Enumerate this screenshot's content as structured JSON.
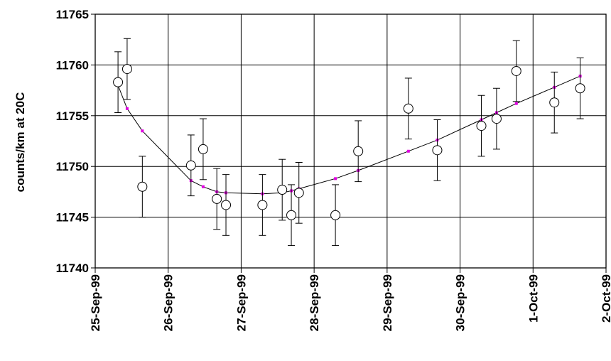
{
  "chart_data": {
    "type": "scatter",
    "title": "",
    "xlabel": "",
    "ylabel": "counts/km at 20C",
    "ylim": [
      11740,
      11765
    ],
    "y_ticks": [
      11740,
      11745,
      11750,
      11755,
      11760,
      11765
    ],
    "xlim": [
      "25-Sep-99",
      "2-Oct-99"
    ],
    "x_tick_labels": [
      "25-Sep-99",
      "26-Sep-99",
      "27-Sep-99",
      "28-Sep-99",
      "29-Sep-99",
      "30-Sep-99",
      "1-Oct-99",
      "2-Oct-99"
    ],
    "grid": true,
    "legend": "none",
    "colors": {
      "fit": "#000000",
      "fit_marker": "#e000e0",
      "points": "#000000",
      "background": "#ffffff"
    },
    "series": [
      {
        "marker": "open-circle",
        "error_bar": 3,
        "points": [
          {
            "x": "25-Sep-99 07:30",
            "y": 11758.3
          },
          {
            "x": "25-Sep-99 10:30",
            "y": 11759.6
          },
          {
            "x": "25-Sep-99 15:30",
            "y": 11748.0
          },
          {
            "x": "26-Sep-99 07:30",
            "y": 11750.1
          },
          {
            "x": "26-Sep-99 11:30",
            "y": 11751.7
          },
          {
            "x": "26-Sep-99 16:00",
            "y": 11746.8
          },
          {
            "x": "26-Sep-99 19:00",
            "y": 11746.2
          },
          {
            "x": "27-Sep-99 07:00",
            "y": 11746.2
          },
          {
            "x": "27-Sep-99 13:30",
            "y": 11747.7
          },
          {
            "x": "27-Sep-99 16:30",
            "y": 11745.2
          },
          {
            "x": "27-Sep-99 19:00",
            "y": 11747.4
          },
          {
            "x": "28-Sep-99 07:00",
            "y": 11745.2
          },
          {
            "x": "28-Sep-99 14:30",
            "y": 11751.5
          },
          {
            "x": "29-Sep-99 07:00",
            "y": 11755.7
          },
          {
            "x": "29-Sep-99 16:30",
            "y": 11751.6
          },
          {
            "x": "30-Sep-99 07:00",
            "y": 11754.0
          },
          {
            "x": "30-Sep-99 12:00",
            "y": 11754.7
          },
          {
            "x": "30-Sep-99 18:30",
            "y": 11759.4
          },
          {
            "x": "1-Oct-99 07:00",
            "y": 11756.3
          },
          {
            "x": "1-Oct-99 15:30",
            "y": 11757.7
          }
        ]
      },
      {
        "line": "fit",
        "marker": "small-square",
        "points": [
          {
            "x": "25-Sep-99 07:30",
            "y": 11758.0
          },
          {
            "x": "25-Sep-99 10:30",
            "y": 11755.7
          },
          {
            "x": "25-Sep-99 15:30",
            "y": 11753.5
          },
          {
            "x": "26-Sep-99 07:30",
            "y": 11748.6
          },
          {
            "x": "26-Sep-99 11:30",
            "y": 11748.0
          },
          {
            "x": "26-Sep-99 16:00",
            "y": 11747.5
          },
          {
            "x": "26-Sep-99 19:00",
            "y": 11747.4
          },
          {
            "x": "27-Sep-99 07:00",
            "y": 11747.3
          },
          {
            "x": "27-Sep-99 13:30",
            "y": 11747.4
          },
          {
            "x": "27-Sep-99 16:30",
            "y": 11747.6
          },
          {
            "x": "27-Sep-99 19:00",
            "y": 11747.8
          },
          {
            "x": "28-Sep-99 07:00",
            "y": 11748.8
          },
          {
            "x": "28-Sep-99 14:30",
            "y": 11749.6
          },
          {
            "x": "29-Sep-99 07:00",
            "y": 11751.5
          },
          {
            "x": "29-Sep-99 16:30",
            "y": 11752.6
          },
          {
            "x": "30-Sep-99 07:00",
            "y": 11754.6
          },
          {
            "x": "30-Sep-99 12:00",
            "y": 11755.3
          },
          {
            "x": "30-Sep-99 18:30",
            "y": 11756.2
          },
          {
            "x": "1-Oct-99 07:00",
            "y": 11757.8
          },
          {
            "x": "1-Oct-99 15:30",
            "y": 11758.9
          }
        ]
      }
    ]
  }
}
